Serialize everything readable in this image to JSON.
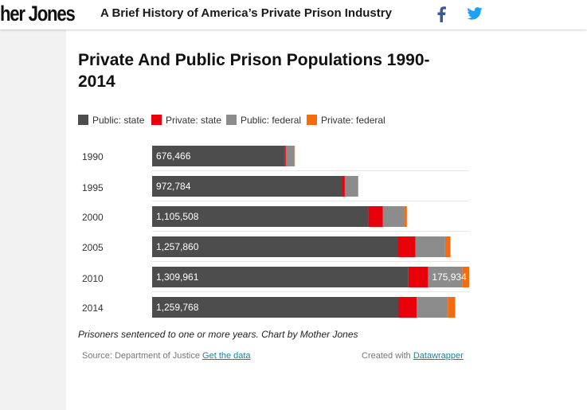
{
  "header": {
    "logo_text": "her Jones",
    "headline": "A Brief History of America’s Private Prison Industry",
    "facebook_icon": "facebook-icon",
    "twitter_icon": "twitter-icon",
    "colors": {
      "facebook": "#3b5998",
      "twitter": "#1da1f2"
    }
  },
  "chart": {
    "note": "Prisoners sentenced to one or more years. Chart by Mother Jones",
    "source_prefix": "Source: Department of Justice",
    "get_data_label": "Get the data",
    "created_prefix": "Created with",
    "datawrapper_label": "Datawrapper"
  },
  "chart_data": {
    "type": "bar",
    "orientation": "horizontal",
    "stacked": true,
    "title": "Private And Public Prison Populations 1990-2014",
    "categories": [
      "1990",
      "1995",
      "2000",
      "2005",
      "2010",
      "2014"
    ],
    "series": [
      {
        "name": "Public: state",
        "color": "#4d4d4d",
        "values": [
          676466,
          972784,
          1105508,
          1257860,
          1309961,
          1259768
        ]
      },
      {
        "name": "Private: state",
        "color": "#e8000b",
        "values": [
          7000,
          12000,
          74000,
          88000,
          100000,
          92000
        ]
      },
      {
        "name": "Public: federal",
        "color": "#8c8c8c",
        "values": [
          44000,
          66000,
          107000,
          152000,
          175934,
          159000
        ]
      },
      {
        "name": "Private: federal",
        "color": "#f76b0f",
        "values": [
          2000,
          3000,
          15000,
          27000,
          34000,
          38000
        ]
      }
    ],
    "data_labels": [
      {
        "category": "1990",
        "series": "Public: state",
        "text": "676,466"
      },
      {
        "category": "1995",
        "series": "Public: state",
        "text": "972,784"
      },
      {
        "category": "2000",
        "series": "Public: state",
        "text": "1,105,508"
      },
      {
        "category": "2005",
        "series": "Public: state",
        "text": "1,257,860"
      },
      {
        "category": "2010",
        "series": "Public: state",
        "text": "1,309,961"
      },
      {
        "category": "2010",
        "series": "Public: federal",
        "text": "175,934"
      },
      {
        "category": "2014",
        "series": "Public: state",
        "text": "1,259,768"
      }
    ],
    "xlim": [
      0,
      1620000
    ],
    "grid": false,
    "legend_position": "top-left"
  }
}
